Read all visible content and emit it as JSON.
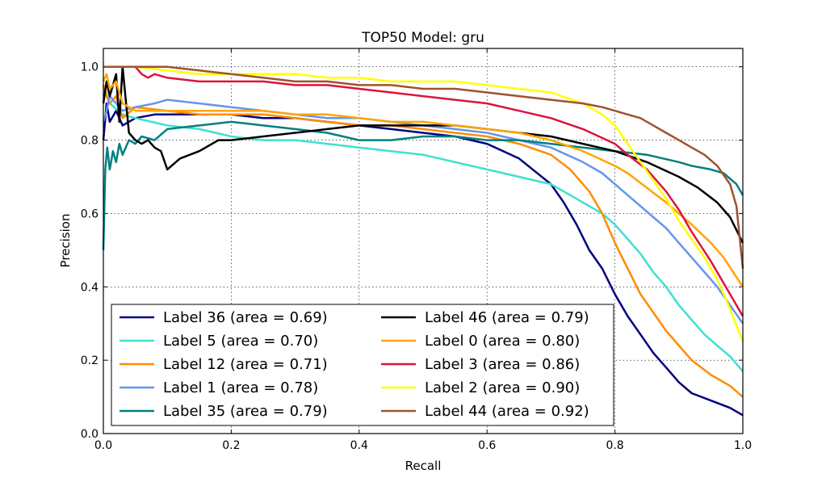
{
  "chart_data": {
    "type": "line",
    "title": "TOP50 Model: gru",
    "xlabel": "Recall",
    "ylabel": "Precision",
    "xlim": [
      0.0,
      1.0
    ],
    "ylim": [
      0.0,
      1.05
    ],
    "xticks": [
      "0.0",
      "0.2",
      "0.4",
      "0.6",
      "0.8",
      "1.0"
    ],
    "yticks": [
      "0.0",
      "0.2",
      "0.4",
      "0.6",
      "0.8",
      "1.0"
    ],
    "grid": true,
    "legend_position": "lower-left",
    "series": [
      {
        "name": "Label 36 (area = 0.69)",
        "color": "#000080",
        "x": [
          0.0,
          0.005,
          0.01,
          0.02,
          0.03,
          0.05,
          0.08,
          0.1,
          0.15,
          0.2,
          0.25,
          0.3,
          0.35,
          0.4,
          0.45,
          0.5,
          0.55,
          0.6,
          0.65,
          0.7,
          0.72,
          0.74,
          0.76,
          0.78,
          0.8,
          0.82,
          0.84,
          0.86,
          0.88,
          0.9,
          0.92,
          0.95,
          0.98,
          1.0
        ],
        "y": [
          0.8,
          0.9,
          0.85,
          0.88,
          0.84,
          0.86,
          0.87,
          0.87,
          0.87,
          0.87,
          0.86,
          0.86,
          0.85,
          0.84,
          0.83,
          0.82,
          0.81,
          0.79,
          0.75,
          0.68,
          0.63,
          0.57,
          0.5,
          0.45,
          0.38,
          0.32,
          0.27,
          0.22,
          0.18,
          0.14,
          0.11,
          0.09,
          0.07,
          0.05
        ]
      },
      {
        "name": "Label 5 (area = 0.70)",
        "color": "#40E0D0",
        "x": [
          0.0,
          0.01,
          0.03,
          0.05,
          0.1,
          0.15,
          0.2,
          0.25,
          0.3,
          0.35,
          0.4,
          0.45,
          0.5,
          0.55,
          0.6,
          0.65,
          0.7,
          0.75,
          0.78,
          0.8,
          0.82,
          0.84,
          0.86,
          0.88,
          0.9,
          0.92,
          0.94,
          0.96,
          0.98,
          1.0
        ],
        "y": [
          0.95,
          0.9,
          0.87,
          0.86,
          0.84,
          0.83,
          0.81,
          0.8,
          0.8,
          0.79,
          0.78,
          0.77,
          0.76,
          0.74,
          0.72,
          0.7,
          0.68,
          0.63,
          0.6,
          0.57,
          0.53,
          0.49,
          0.44,
          0.4,
          0.35,
          0.31,
          0.27,
          0.24,
          0.21,
          0.17
        ]
      },
      {
        "name": "Label 12 (area = 0.71)",
        "color": "#FF8C00",
        "x": [
          0.0,
          0.005,
          0.01,
          0.02,
          0.03,
          0.05,
          0.1,
          0.15,
          0.2,
          0.25,
          0.3,
          0.35,
          0.4,
          0.45,
          0.5,
          0.55,
          0.6,
          0.65,
          0.7,
          0.73,
          0.76,
          0.78,
          0.8,
          0.82,
          0.84,
          0.86,
          0.88,
          0.9,
          0.92,
          0.95,
          0.98,
          1.0
        ],
        "y": [
          0.95,
          0.92,
          0.9,
          0.92,
          0.86,
          0.89,
          0.88,
          0.87,
          0.87,
          0.87,
          0.86,
          0.85,
          0.84,
          0.84,
          0.83,
          0.82,
          0.81,
          0.79,
          0.76,
          0.72,
          0.66,
          0.6,
          0.52,
          0.45,
          0.38,
          0.33,
          0.28,
          0.24,
          0.2,
          0.16,
          0.13,
          0.1
        ]
      },
      {
        "name": "Label 1 (area = 0.78)",
        "color": "#6495ED",
        "x": [
          0.0,
          0.005,
          0.01,
          0.02,
          0.03,
          0.05,
          0.08,
          0.1,
          0.15,
          0.2,
          0.25,
          0.3,
          0.35,
          0.4,
          0.45,
          0.5,
          0.55,
          0.6,
          0.65,
          0.7,
          0.75,
          0.78,
          0.8,
          0.82,
          0.84,
          0.86,
          0.88,
          0.9,
          0.92,
          0.94,
          0.96,
          0.98,
          1.0
        ],
        "y": [
          0.85,
          0.88,
          0.92,
          0.9,
          0.88,
          0.89,
          0.9,
          0.91,
          0.9,
          0.89,
          0.88,
          0.87,
          0.86,
          0.86,
          0.85,
          0.84,
          0.83,
          0.82,
          0.8,
          0.78,
          0.74,
          0.71,
          0.68,
          0.65,
          0.62,
          0.59,
          0.56,
          0.52,
          0.48,
          0.44,
          0.4,
          0.35,
          0.3
        ]
      },
      {
        "name": "Label 35 (area = 0.79)",
        "color": "#008080",
        "x": [
          0.0,
          0.003,
          0.006,
          0.01,
          0.015,
          0.02,
          0.025,
          0.03,
          0.04,
          0.05,
          0.06,
          0.08,
          0.1,
          0.15,
          0.2,
          0.25,
          0.3,
          0.35,
          0.4,
          0.45,
          0.5,
          0.55,
          0.6,
          0.65,
          0.7,
          0.75,
          0.8,
          0.85,
          0.9,
          0.92,
          0.95,
          0.97,
          0.99,
          1.0
        ],
        "y": [
          0.5,
          0.72,
          0.78,
          0.72,
          0.77,
          0.74,
          0.79,
          0.76,
          0.8,
          0.79,
          0.81,
          0.8,
          0.83,
          0.84,
          0.85,
          0.84,
          0.83,
          0.82,
          0.8,
          0.8,
          0.81,
          0.81,
          0.8,
          0.8,
          0.79,
          0.78,
          0.77,
          0.76,
          0.74,
          0.73,
          0.72,
          0.71,
          0.68,
          0.65
        ]
      },
      {
        "name": "Label 46 (area = 0.79)",
        "color": "#000000",
        "x": [
          0.0,
          0.005,
          0.01,
          0.02,
          0.025,
          0.03,
          0.04,
          0.05,
          0.06,
          0.07,
          0.08,
          0.09,
          0.1,
          0.12,
          0.15,
          0.18,
          0.2,
          0.25,
          0.3,
          0.35,
          0.4,
          0.45,
          0.5,
          0.55,
          0.6,
          0.65,
          0.7,
          0.75,
          0.8,
          0.85,
          0.9,
          0.93,
          0.96,
          0.98,
          1.0
        ],
        "y": [
          0.9,
          0.96,
          0.92,
          0.98,
          0.85,
          1.0,
          0.82,
          0.8,
          0.79,
          0.8,
          0.78,
          0.77,
          0.72,
          0.75,
          0.77,
          0.8,
          0.8,
          0.81,
          0.82,
          0.83,
          0.84,
          0.84,
          0.84,
          0.84,
          0.83,
          0.82,
          0.81,
          0.79,
          0.77,
          0.74,
          0.7,
          0.67,
          0.63,
          0.59,
          0.52
        ]
      },
      {
        "name": "Label 0 (area = 0.80)",
        "color": "#FFA500",
        "x": [
          0.0,
          0.005,
          0.01,
          0.02,
          0.03,
          0.05,
          0.1,
          0.15,
          0.2,
          0.25,
          0.3,
          0.35,
          0.4,
          0.45,
          0.5,
          0.55,
          0.6,
          0.65,
          0.7,
          0.75,
          0.8,
          0.82,
          0.85,
          0.88,
          0.9,
          0.92,
          0.95,
          0.97,
          1.0
        ],
        "y": [
          0.96,
          0.98,
          0.94,
          0.96,
          0.9,
          0.88,
          0.88,
          0.88,
          0.88,
          0.88,
          0.87,
          0.87,
          0.86,
          0.85,
          0.85,
          0.84,
          0.83,
          0.82,
          0.8,
          0.77,
          0.73,
          0.71,
          0.67,
          0.63,
          0.6,
          0.57,
          0.52,
          0.48,
          0.4
        ]
      },
      {
        "name": "Label 3 (area = 0.86)",
        "color": "#DC143C",
        "x": [
          0.0,
          0.02,
          0.04,
          0.05,
          0.06,
          0.07,
          0.08,
          0.1,
          0.15,
          0.2,
          0.25,
          0.3,
          0.35,
          0.4,
          0.45,
          0.5,
          0.55,
          0.6,
          0.65,
          0.7,
          0.75,
          0.8,
          0.82,
          0.85,
          0.88,
          0.9,
          0.92,
          0.95,
          0.98,
          1.0
        ],
        "y": [
          1.0,
          1.0,
          1.0,
          1.0,
          0.98,
          0.97,
          0.98,
          0.97,
          0.96,
          0.96,
          0.96,
          0.95,
          0.95,
          0.94,
          0.93,
          0.92,
          0.91,
          0.9,
          0.88,
          0.86,
          0.83,
          0.79,
          0.76,
          0.72,
          0.66,
          0.61,
          0.55,
          0.47,
          0.38,
          0.32
        ]
      },
      {
        "name": "Label 2 (area = 0.90)",
        "color": "#FFFF00",
        "x": [
          0.0,
          0.05,
          0.1,
          0.15,
          0.2,
          0.25,
          0.3,
          0.35,
          0.4,
          0.45,
          0.5,
          0.55,
          0.6,
          0.65,
          0.7,
          0.75,
          0.78,
          0.8,
          0.82,
          0.84,
          0.86,
          0.88,
          0.9,
          0.92,
          0.94,
          0.96,
          0.98,
          1.0
        ],
        "y": [
          1.0,
          1.0,
          0.99,
          0.98,
          0.98,
          0.98,
          0.98,
          0.97,
          0.97,
          0.96,
          0.96,
          0.96,
          0.95,
          0.94,
          0.93,
          0.9,
          0.87,
          0.84,
          0.79,
          0.74,
          0.69,
          0.64,
          0.58,
          0.53,
          0.48,
          0.42,
          0.34,
          0.25
        ]
      },
      {
        "name": "Label 44 (area = 0.92)",
        "color": "#A0522D",
        "x": [
          0.0,
          0.05,
          0.1,
          0.15,
          0.2,
          0.25,
          0.3,
          0.35,
          0.4,
          0.45,
          0.5,
          0.55,
          0.6,
          0.65,
          0.7,
          0.75,
          0.78,
          0.8,
          0.82,
          0.84,
          0.86,
          0.88,
          0.9,
          0.92,
          0.94,
          0.96,
          0.98,
          0.99,
          1.0
        ],
        "y": [
          1.0,
          1.0,
          1.0,
          0.99,
          0.98,
          0.97,
          0.96,
          0.96,
          0.95,
          0.95,
          0.94,
          0.94,
          0.93,
          0.92,
          0.91,
          0.9,
          0.89,
          0.88,
          0.87,
          0.86,
          0.84,
          0.82,
          0.8,
          0.78,
          0.76,
          0.73,
          0.68,
          0.62,
          0.45
        ]
      }
    ]
  }
}
